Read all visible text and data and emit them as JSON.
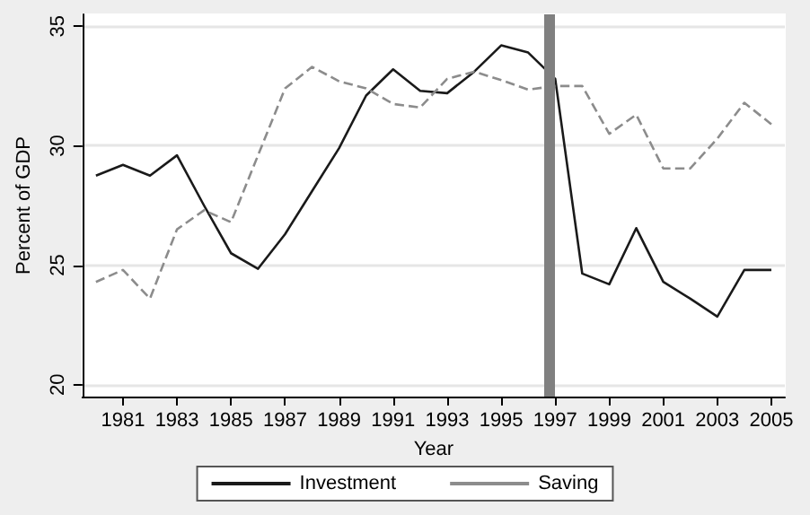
{
  "chart_data": {
    "type": "line",
    "xlabel": "Year",
    "ylabel": "Percent of GDP",
    "x": [
      1980,
      1981,
      1982,
      1983,
      1984,
      1985,
      1986,
      1987,
      1988,
      1989,
      1990,
      1991,
      1992,
      1993,
      1994,
      1995,
      1996,
      1997,
      1998,
      1999,
      2000,
      2001,
      2002,
      2003,
      2004,
      2005
    ],
    "series": [
      {
        "name": "Investment",
        "color": "#1a1a1a",
        "line_style": "solid",
        "values": [
          28.75,
          29.2,
          28.75,
          29.6,
          27.5,
          25.5,
          24.85,
          26.3,
          28.1,
          29.9,
          32.1,
          33.2,
          32.3,
          32.2,
          33.1,
          34.2,
          33.9,
          32.8,
          24.65,
          24.2,
          26.55,
          24.3,
          23.6,
          22.85,
          24.8,
          24.8
        ]
      },
      {
        "name": "Saving",
        "color": "#8c8c8c",
        "line_style": "dashed",
        "values": [
          24.3,
          24.8,
          23.6,
          26.5,
          27.3,
          26.8,
          29.6,
          32.4,
          33.3,
          32.7,
          32.4,
          31.75,
          31.6,
          32.8,
          33.1,
          32.75,
          32.35,
          32.5,
          32.5,
          30.5,
          31.3,
          29.05,
          29.05,
          30.3,
          31.8,
          30.9
        ]
      }
    ],
    "xlim": [
      1979.5,
      2005.5
    ],
    "xticks": [
      1981,
      1983,
      1985,
      1987,
      1989,
      1991,
      1993,
      1995,
      1997,
      1999,
      2001,
      2003,
      2005
    ],
    "ylim": [
      19.5,
      35.5
    ],
    "yticks": [
      20,
      25,
      30,
      35
    ],
    "grid": "y",
    "legend": "bottom",
    "marker": "none",
    "ref_lines": [
      {
        "axis": "x",
        "value": 1996.8,
        "color": "#808080"
      }
    ]
  }
}
